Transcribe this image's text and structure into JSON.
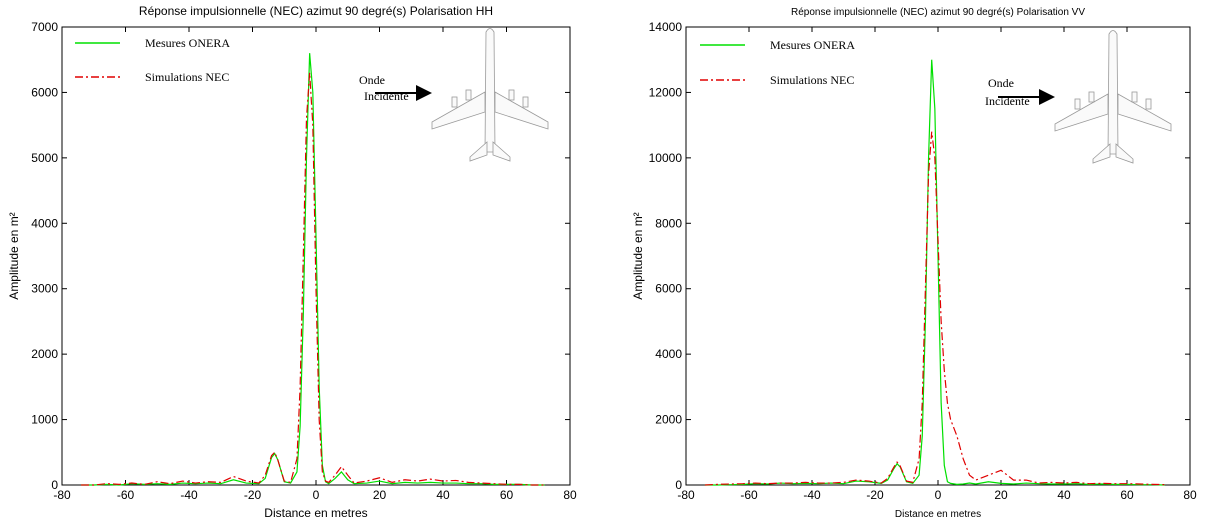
{
  "chart_data": [
    {
      "type": "line",
      "title": "Réponse impulsionnelle (NEC) azimut 90 degré(s) Polarisation HH",
      "xlabel": "Distance en metres",
      "ylabel": "Amplitude en m²",
      "annotation": [
        "Onde",
        "Incidente"
      ],
      "x": [
        -74,
        -70,
        -66,
        -62,
        -58,
        -54,
        -50,
        -46,
        -42,
        -38,
        -34,
        -30,
        -26,
        -22,
        -18,
        -16,
        -14,
        -13,
        -12,
        -10,
        -8,
        -6,
        -5,
        -4,
        -3,
        -2,
        -1,
        0,
        1,
        2,
        3,
        4,
        6,
        8,
        10,
        12,
        16,
        20,
        24,
        28,
        32,
        36,
        40,
        44,
        48,
        52,
        56,
        60,
        64,
        68,
        72
      ],
      "series": [
        {
          "name": "Mesures ONERA",
          "color": "#00e000",
          "dash": "solid",
          "values": [
            0,
            0,
            10,
            0,
            20,
            10,
            20,
            10,
            30,
            20,
            30,
            20,
            80,
            30,
            20,
            100,
            420,
            480,
            380,
            50,
            30,
            200,
            900,
            2600,
            5000,
            6600,
            6000,
            3800,
            1500,
            300,
            50,
            20,
            100,
            200,
            80,
            20,
            30,
            60,
            20,
            40,
            30,
            40,
            30,
            30,
            20,
            20,
            10,
            10,
            10,
            0,
            0
          ]
        },
        {
          "name": "Simulations NEC",
          "color": "#e00000",
          "dash": "dashdot",
          "values": [
            0,
            0,
            20,
            10,
            30,
            10,
            50,
            20,
            60,
            30,
            50,
            40,
            130,
            60,
            30,
            150,
            450,
            500,
            380,
            60,
            40,
            400,
            1500,
            3500,
            5600,
            6300,
            5500,
            3000,
            1000,
            200,
            60,
            40,
            150,
            280,
            150,
            30,
            60,
            110,
            40,
            80,
            60,
            90,
            60,
            70,
            40,
            30,
            20,
            10,
            10,
            0,
            0
          ]
        }
      ],
      "xlim": [
        -80,
        80
      ],
      "xticks": [
        -80,
        -60,
        -40,
        -20,
        0,
        20,
        40,
        60,
        80
      ],
      "ylim": [
        0,
        7000
      ],
      "yticks": [
        0,
        1000,
        2000,
        3000,
        4000,
        5000,
        6000,
        7000
      ],
      "legend": "upper left",
      "grid": false
    },
    {
      "type": "line",
      "title": "Réponse impulsionnelle (NEC) azimut 90 degré(s) Polarisation VV",
      "xlabel": "Distance en metres",
      "ylabel": "Amplitude en m²",
      "annotation": [
        "Onde",
        "Incidente"
      ],
      "x": [
        -74,
        -70,
        -66,
        -62,
        -58,
        -54,
        -50,
        -46,
        -42,
        -38,
        -34,
        -30,
        -26,
        -22,
        -18,
        -16,
        -14,
        -13,
        -12,
        -10,
        -8,
        -6,
        -5,
        -4,
        -3,
        -2,
        -1,
        0,
        1,
        2,
        3,
        4,
        6,
        8,
        10,
        12,
        16,
        20,
        24,
        28,
        32,
        36,
        40,
        44,
        48,
        52,
        56,
        60,
        64,
        68,
        72
      ],
      "series": [
        {
          "name": "Mesures ONERA",
          "color": "#00e000",
          "dash": "solid",
          "values": [
            0,
            0,
            10,
            20,
            40,
            30,
            60,
            40,
            50,
            40,
            60,
            40,
            120,
            100,
            50,
            150,
            500,
            650,
            550,
            100,
            50,
            300,
            1500,
            5000,
            10000,
            13000,
            11500,
            7000,
            2500,
            600,
            100,
            50,
            20,
            30,
            60,
            30,
            100,
            50,
            30,
            60,
            40,
            30,
            30,
            40,
            20,
            30,
            20,
            20,
            10,
            10,
            0
          ]
        },
        {
          "name": "Simulations NEC",
          "color": "#e00000",
          "dash": "dashdot",
          "values": [
            0,
            20,
            30,
            40,
            60,
            40,
            60,
            60,
            80,
            60,
            60,
            80,
            150,
            120,
            60,
            200,
            550,
            700,
            580,
            120,
            80,
            800,
            2500,
            6000,
            9500,
            10800,
            10000,
            7500,
            5000,
            3500,
            2500,
            2000,
            1500,
            800,
            300,
            150,
            300,
            450,
            150,
            150,
            60,
            80,
            60,
            80,
            40,
            50,
            40,
            40,
            30,
            20,
            10
          ]
        }
      ],
      "xlim": [
        -80,
        80
      ],
      "xticks": [
        -80,
        -60,
        -40,
        -20,
        0,
        20,
        40,
        60,
        80
      ],
      "ylim": [
        0,
        14000
      ],
      "yticks": [
        0,
        2000,
        4000,
        6000,
        8000,
        10000,
        12000,
        14000
      ],
      "legend": "upper left",
      "grid": false
    }
  ]
}
